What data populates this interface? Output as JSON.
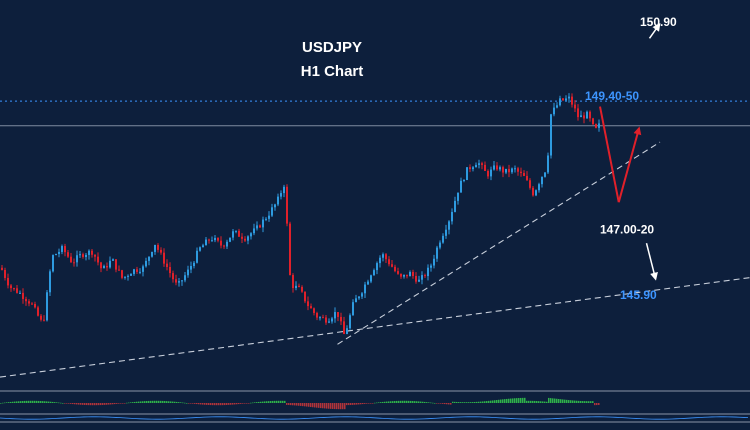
{
  "chart_data": {
    "type": "candlestick",
    "title": "USDJPY",
    "subtitle": "H1 Chart",
    "colors": {
      "background": "#0d1f3c",
      "bull": "#2e9be0",
      "bear": "#e0202a",
      "level_blue": "#3d95ff",
      "level_white": "#ffffff",
      "arrow_red": "#e0202a",
      "arrow_white": "#ffffff",
      "trendline": "#c8cfdb",
      "hist_pos": "#2fb34a",
      "hist_neg": "#b0333a"
    },
    "y_range": [
      144.2,
      151.3
    ],
    "levels": [
      {
        "label": "150.90",
        "price": 150.9,
        "color": "white",
        "style": "none"
      },
      {
        "label": "149.40-50",
        "price": 149.45,
        "color": "blue",
        "style": "dotted"
      },
      {
        "label": "147.00-20",
        "price": 147.1,
        "color": "white",
        "style": "none"
      },
      {
        "label": "145.90",
        "price": 145.9,
        "color": "blue",
        "style": "none"
      }
    ],
    "current_price_line": 149.0,
    "price_path": [
      {
        "t": 0,
        "p": 146.4
      },
      {
        "t": 0.012,
        "p": 146.05
      },
      {
        "t": 0.024,
        "p": 145.95
      },
      {
        "t": 0.04,
        "p": 145.75
      },
      {
        "t": 0.056,
        "p": 145.35
      },
      {
        "t": 0.068,
        "p": 146.6
      },
      {
        "t": 0.082,
        "p": 146.75
      },
      {
        "t": 0.095,
        "p": 146.5
      },
      {
        "t": 0.108,
        "p": 146.65
      },
      {
        "t": 0.122,
        "p": 146.7
      },
      {
        "t": 0.135,
        "p": 146.35
      },
      {
        "t": 0.148,
        "p": 146.55
      },
      {
        "t": 0.162,
        "p": 146.2
      },
      {
        "t": 0.175,
        "p": 146.35
      },
      {
        "t": 0.19,
        "p": 146.4
      },
      {
        "t": 0.205,
        "p": 146.85
      },
      {
        "t": 0.22,
        "p": 146.45
      },
      {
        "t": 0.235,
        "p": 146.05
      },
      {
        "t": 0.25,
        "p": 146.35
      },
      {
        "t": 0.265,
        "p": 146.75
      },
      {
        "t": 0.28,
        "p": 146.95
      },
      {
        "t": 0.295,
        "p": 146.8
      },
      {
        "t": 0.31,
        "p": 147.05
      },
      {
        "t": 0.325,
        "p": 146.95
      },
      {
        "t": 0.34,
        "p": 147.1
      },
      {
        "t": 0.355,
        "p": 147.35
      },
      {
        "t": 0.368,
        "p": 147.6
      },
      {
        "t": 0.378,
        "p": 147.95
      },
      {
        "t": 0.386,
        "p": 146.1
      },
      {
        "t": 0.398,
        "p": 146.0
      },
      {
        "t": 0.41,
        "p": 145.7
      },
      {
        "t": 0.422,
        "p": 145.5
      },
      {
        "t": 0.435,
        "p": 145.45
      },
      {
        "t": 0.448,
        "p": 145.6
      },
      {
        "t": 0.458,
        "p": 145.15
      },
      {
        "t": 0.47,
        "p": 145.75
      },
      {
        "t": 0.482,
        "p": 146.0
      },
      {
        "t": 0.495,
        "p": 146.35
      },
      {
        "t": 0.508,
        "p": 146.65
      },
      {
        "t": 0.52,
        "p": 146.45
      },
      {
        "t": 0.532,
        "p": 146.2
      },
      {
        "t": 0.545,
        "p": 146.3
      },
      {
        "t": 0.558,
        "p": 146.15
      },
      {
        "t": 0.572,
        "p": 146.4
      },
      {
        "t": 0.585,
        "p": 146.9
      },
      {
        "t": 0.598,
        "p": 147.3
      },
      {
        "t": 0.61,
        "p": 147.85
      },
      {
        "t": 0.622,
        "p": 148.2
      },
      {
        "t": 0.635,
        "p": 148.35
      },
      {
        "t": 0.648,
        "p": 148.1
      },
      {
        "t": 0.66,
        "p": 148.25
      },
      {
        "t": 0.672,
        "p": 148.15
      },
      {
        "t": 0.685,
        "p": 148.2
      },
      {
        "t": 0.698,
        "p": 148.05
      },
      {
        "t": 0.71,
        "p": 147.75
      },
      {
        "t": 0.72,
        "p": 148.05
      },
      {
        "t": 0.728,
        "p": 148.25
      },
      {
        "t": 0.733,
        "p": 149.2
      },
      {
        "t": 0.745,
        "p": 149.45
      },
      {
        "t": 0.758,
        "p": 149.5
      },
      {
        "t": 0.77,
        "p": 149.15
      },
      {
        "t": 0.782,
        "p": 149.2
      },
      {
        "t": 0.792,
        "p": 148.9
      },
      {
        "t": 0.8,
        "p": 149.05
      }
    ],
    "trendlines": [
      {
        "x1": 0.0,
        "y1": 144.4,
        "x2": 1.0,
        "y2": 146.22
      },
      {
        "x1": 0.45,
        "y1": 145.0,
        "x2": 0.88,
        "y2": 148.7
      }
    ],
    "arrows": [
      {
        "color": "red",
        "x1": 0.8,
        "y1": 149.35,
        "x2": 0.825,
        "y2": 147.6
      },
      {
        "color": "red",
        "x1": 0.825,
        "y1": 147.6,
        "x2": 0.852,
        "y2": 148.95
      },
      {
        "color": "white",
        "x1": 0.862,
        "y1": 146.85,
        "x2": 0.874,
        "y2": 146.2
      },
      {
        "color": "white",
        "x1": 0.866,
        "y1": 150.6,
        "x2": 0.879,
        "y2": 150.85
      }
    ]
  }
}
